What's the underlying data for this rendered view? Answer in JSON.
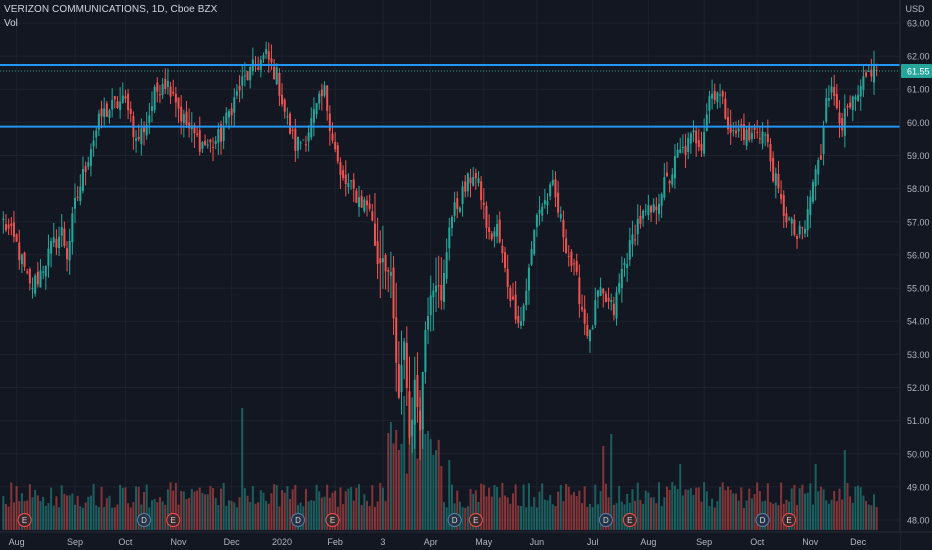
{
  "header": {
    "symbol_line": "VERIZON COMMUNICATIONS, 1D, Cboe BZX",
    "volume_label": "Vol"
  },
  "currency": "USD",
  "last_price_label": "61.55",
  "colors": {
    "background": "#131722",
    "up": "#26a69a",
    "down": "#ef5350",
    "level_line": "#2196f3",
    "text": "#b2b5be",
    "grid": "#1e222d"
  },
  "chart_data": {
    "type": "candlestick",
    "title": "VERIZON COMMUNICATIONS, 1D, Cboe BZX",
    "ylim": [
      47.7,
      63.3
    ],
    "y_ticks": [
      63.0,
      62.0,
      61.0,
      60.0,
      59.0,
      58.0,
      57.0,
      56.0,
      55.0,
      54.0,
      53.0,
      52.0,
      51.0,
      50.0,
      49.0,
      48.0
    ],
    "x_tick_labels": [
      "Aug",
      "Sep",
      "Oct",
      "Nov",
      "Dec",
      "2020",
      "Feb",
      "3",
      "Apr",
      "May",
      "Jun",
      "Jul",
      "Aug",
      "Sep",
      "Oct",
      "Nov",
      "Dec"
    ],
    "x_tick_index": [
      5,
      27,
      46,
      66,
      86,
      105,
      125,
      143,
      161,
      181,
      201,
      222,
      243,
      264,
      284,
      304,
      322
    ],
    "horizontal_levels": [
      61.73,
      59.87
    ],
    "last_price": 61.55,
    "events": [
      {
        "label": "E",
        "index": 8
      },
      {
        "label": "D",
        "index": 53
      },
      {
        "label": "E",
        "index": 64
      },
      {
        "label": "D",
        "index": 111
      },
      {
        "label": "E",
        "index": 124
      },
      {
        "label": "D",
        "index": 170
      },
      {
        "label": "E",
        "index": 178
      },
      {
        "label": "D",
        "index": 227
      },
      {
        "label": "E",
        "index": 236
      },
      {
        "label": "D",
        "index": 286
      },
      {
        "label": "E",
        "index": 296
      }
    ],
    "bar_count": 330,
    "close_path": [
      [
        0,
        57.0
      ],
      [
        5,
        56.3
      ],
      [
        10,
        55.0
      ],
      [
        13,
        55.3
      ],
      [
        18,
        56.2
      ],
      [
        22,
        56.7
      ],
      [
        24,
        56.0
      ],
      [
        27,
        57.5
      ],
      [
        33,
        59.3
      ],
      [
        37,
        60.2
      ],
      [
        40,
        60.4
      ],
      [
        44,
        60.6
      ],
      [
        47,
        60.6
      ],
      [
        50,
        59.4
      ],
      [
        54,
        60.0
      ],
      [
        57,
        60.8
      ],
      [
        60,
        61.3
      ],
      [
        64,
        61.0
      ],
      [
        67,
        60.2
      ],
      [
        70,
        59.8
      ],
      [
        74,
        59.4
      ],
      [
        78,
        59.3
      ],
      [
        82,
        59.6
      ],
      [
        86,
        60.5
      ],
      [
        90,
        61.2
      ],
      [
        95,
        61.7
      ],
      [
        99,
        62.0
      ],
      [
        103,
        61.4
      ],
      [
        107,
        60.0
      ],
      [
        110,
        59.3
      ],
      [
        114,
        59.6
      ],
      [
        118,
        60.4
      ],
      [
        121,
        60.9
      ],
      [
        124,
        59.6
      ],
      [
        127,
        58.3
      ],
      [
        131,
        58.0
      ],
      [
        135,
        57.6
      ],
      [
        138,
        57.5
      ],
      [
        141,
        55.8
      ],
      [
        143,
        56.0
      ],
      [
        146,
        55.2
      ],
      [
        149,
        51.5
      ],
      [
        151,
        53.5
      ],
      [
        153,
        50.5
      ],
      [
        155,
        52.0
      ],
      [
        157,
        51.0
      ],
      [
        159,
        53.8
      ],
      [
        161,
        55.0
      ],
      [
        163,
        55.3
      ],
      [
        165,
        54.5
      ],
      [
        168,
        57.0
      ],
      [
        171,
        57.5
      ],
      [
        174,
        58.0
      ],
      [
        177,
        58.5
      ],
      [
        180,
        57.8
      ],
      [
        183,
        56.5
      ],
      [
        186,
        56.8
      ],
      [
        189,
        55.5
      ],
      [
        192,
        54.5
      ],
      [
        195,
        54.0
      ],
      [
        198,
        55.5
      ],
      [
        201,
        57.3
      ],
      [
        204,
        57.6
      ],
      [
        207,
        58.0
      ],
      [
        210,
        57.0
      ],
      [
        213,
        56.0
      ],
      [
        216,
        55.2
      ],
      [
        219,
        54.0
      ],
      [
        221,
        53.5
      ],
      [
        224,
        54.8
      ],
      [
        227,
        54.6
      ],
      [
        230,
        54.3
      ],
      [
        233,
        55.5
      ],
      [
        236,
        56.2
      ],
      [
        239,
        57.0
      ],
      [
        242,
        57.2
      ],
      [
        245,
        57.3
      ],
      [
        248,
        58.0
      ],
      [
        251,
        58.3
      ],
      [
        254,
        59.0
      ],
      [
        257,
        59.2
      ],
      [
        260,
        59.6
      ],
      [
        263,
        59.4
      ],
      [
        266,
        60.8
      ],
      [
        269,
        61.0
      ],
      [
        272,
        60.3
      ],
      [
        275,
        59.6
      ],
      [
        278,
        59.8
      ],
      [
        281,
        59.5
      ],
      [
        284,
        59.8
      ],
      [
        287,
        59.6
      ],
      [
        290,
        58.5
      ],
      [
        293,
        57.5
      ],
      [
        296,
        57.0
      ],
      [
        299,
        56.5
      ],
      [
        302,
        56.8
      ],
      [
        305,
        58.2
      ],
      [
        308,
        59.0
      ],
      [
        310,
        61.0
      ],
      [
        313,
        60.8
      ],
      [
        316,
        60.0
      ],
      [
        319,
        60.4
      ],
      [
        322,
        60.7
      ],
      [
        325,
        61.3
      ],
      [
        327,
        61.6
      ],
      [
        329,
        61.55
      ]
    ]
  }
}
